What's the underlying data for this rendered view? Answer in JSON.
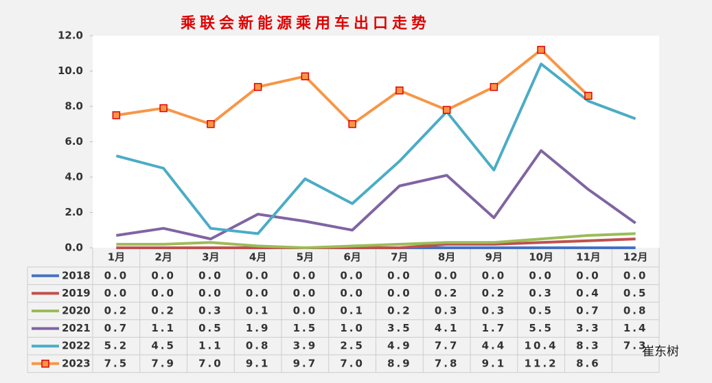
{
  "chart_data": {
    "type": "line",
    "title": "乘联会新能源乘用车出口走势",
    "categories": [
      "1月",
      "2月",
      "3月",
      "4月",
      "5月",
      "6月",
      "7月",
      "8月",
      "9月",
      "10月",
      "11月",
      "12月"
    ],
    "ylim": [
      0,
      12
    ],
    "yticks": [
      {
        "value": 0,
        "label": "0.0"
      },
      {
        "value": 2,
        "label": "2.0"
      },
      {
        "value": 4,
        "label": "4.0"
      },
      {
        "value": 6,
        "label": "6.0"
      },
      {
        "value": 8,
        "label": "8.0"
      },
      {
        "value": 10,
        "label": "10.0"
      },
      {
        "value": 12,
        "label": "12.0"
      }
    ],
    "grid": false,
    "series": [
      {
        "name": "2018",
        "color": "#4472c4",
        "values": [
          0,
          0,
          0,
          0,
          0,
          0,
          0,
          0,
          0,
          0,
          0,
          0
        ],
        "value_labels": [
          "0.0",
          "0.0",
          "0.0",
          "0.0",
          "0.0",
          "0.0",
          "0.0",
          "0.0",
          "0.0",
          "0.0",
          "0.0",
          "0.0"
        ]
      },
      {
        "name": "2019",
        "color": "#c0504d",
        "values": [
          0,
          0,
          0,
          0,
          0,
          0,
          0,
          0.2,
          0.2,
          0.3,
          0.4,
          0.5
        ],
        "value_labels": [
          "0.0",
          "0.0",
          "0.0",
          "0.0",
          "0.0",
          "0.0",
          "0.0",
          "0.2",
          "0.2",
          "0.3",
          "0.4",
          "0.5"
        ]
      },
      {
        "name": "2020",
        "color": "#9bbb59",
        "values": [
          0.2,
          0.2,
          0.3,
          0.1,
          0,
          0.1,
          0.2,
          0.3,
          0.3,
          0.5,
          0.7,
          0.8
        ],
        "value_labels": [
          "0.2",
          "0.2",
          "0.3",
          "0.1",
          "0.0",
          "0.1",
          "0.2",
          "0.3",
          "0.3",
          "0.5",
          "0.7",
          "0.8"
        ]
      },
      {
        "name": "2021",
        "color": "#8064a2",
        "values": [
          0.7,
          1.1,
          0.5,
          1.9,
          1.5,
          1,
          3.5,
          4.1,
          1.7,
          5.5,
          3.3,
          1.4
        ],
        "value_labels": [
          "0.7",
          "1.1",
          "0.5",
          "1.9",
          "1.5",
          "1.0",
          "3.5",
          "4.1",
          "1.7",
          "5.5",
          "3.3",
          "1.4"
        ]
      },
      {
        "name": "2022",
        "color": "#4bacc6",
        "values": [
          5.2,
          4.5,
          1.1,
          0.8,
          3.9,
          2.5,
          4.9,
          7.7,
          4.4,
          10.4,
          8.3,
          7.3
        ],
        "value_labels": [
          "5.2",
          "4.5",
          "1.1",
          "0.8",
          "3.9",
          "2.5",
          "4.9",
          "7.7",
          "4.4",
          "10.4",
          "8.3",
          "7.3"
        ]
      },
      {
        "name": "2023",
        "color": "#f79646",
        "marker": true,
        "values": [
          7.5,
          7.9,
          7,
          9.1,
          9.7,
          7,
          8.9,
          7.8,
          9.1,
          11.2,
          8.6,
          null
        ],
        "value_labels": [
          "7.5",
          "7.9",
          "7.0",
          "9.1",
          "9.7",
          "7.0",
          "8.9",
          "7.8",
          "9.1",
          "11.2",
          "8.6",
          null
        ]
      }
    ],
    "watermark": "崔东树"
  }
}
